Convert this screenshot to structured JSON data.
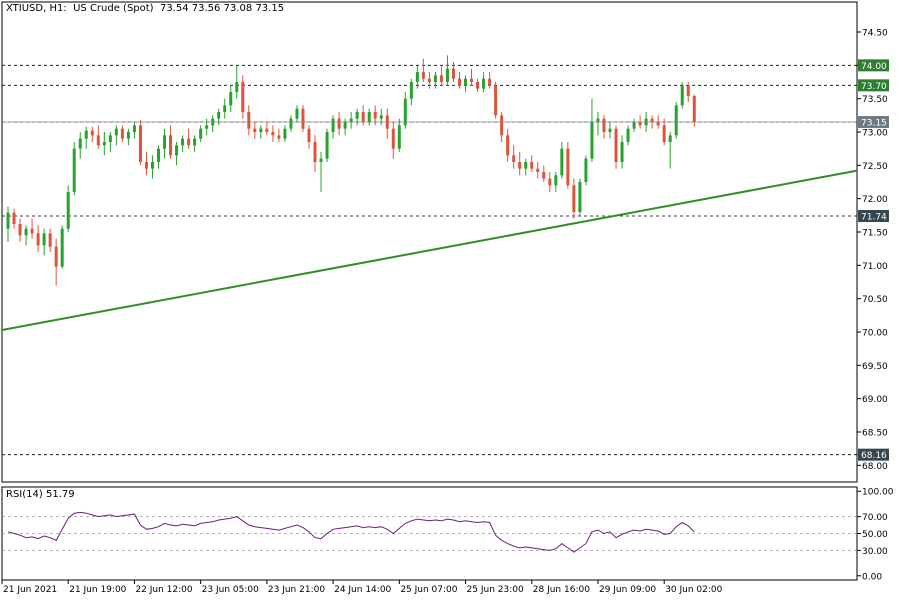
{
  "header": {
    "symbol": "XTIUSD",
    "timeframe": "H1",
    "instrument_name": "US Crude (Spot)",
    "ohlc": [
      "73.54",
      "73.56",
      "73.08",
      "73.15"
    ]
  },
  "rsi_header": {
    "name": "RSI(14)",
    "value": "51.79"
  },
  "colors": {
    "bull": "#26a22e",
    "bear": "#e0533b",
    "trendline": "#2f8f24",
    "rsi_line": "#6a1f7a",
    "grid": "#000000",
    "label_green_bg": "#2e7d32",
    "label_grey_bg": "#6d7b85",
    "label_dark_bg": "#37474f"
  },
  "chart_data": [
    {
      "type": "candlestick",
      "title": "XTIUSD, H1: US Crude (Spot)",
      "ylim": [
        67.75,
        74.95
      ],
      "y_ticks": [
        "74.50",
        "74.00",
        "73.50",
        "73.00",
        "72.50",
        "72.00",
        "71.50",
        "71.00",
        "70.50",
        "70.00",
        "69.50",
        "69.00",
        "68.50",
        "68.00"
      ],
      "x_ticks": [
        "21 Jun 2021",
        "21 Jun 19:00",
        "22 Jun 12:00",
        "23 Jun 05:00",
        "23 Jun 21:00",
        "24 Jun 14:00",
        "25 Jun 07:00",
        "25 Jun 23:00",
        "28 Jun 16:00",
        "29 Jun 09:00",
        "30 Jun 02:00"
      ],
      "horizontal_levels": [
        {
          "price": 74.0,
          "label": "74.00",
          "style": "green"
        },
        {
          "price": 73.7,
          "label": "73.70",
          "style": "green"
        },
        {
          "price": 73.15,
          "label": "73.15",
          "style": "grey"
        },
        {
          "price": 71.74,
          "label": "71.74",
          "style": "dark"
        },
        {
          "price": 68.16,
          "label": "68.16",
          "style": "dark"
        }
      ],
      "trendline": {
        "start": [
          0,
          70.03
        ],
        "end": [
          128,
          72.42
        ]
      },
      "candles_ohlc": [
        [
          71.55,
          71.88,
          71.35,
          71.79
        ],
        [
          71.79,
          71.85,
          71.55,
          71.62
        ],
        [
          71.62,
          71.7,
          71.35,
          71.45
        ],
        [
          71.45,
          71.6,
          71.3,
          71.55
        ],
        [
          71.55,
          71.7,
          71.4,
          71.48
        ],
        [
          71.48,
          71.6,
          71.2,
          71.3
        ],
        [
          71.3,
          71.55,
          71.15,
          71.48
        ],
        [
          71.48,
          71.55,
          71.2,
          71.28
        ],
        [
          71.28,
          71.4,
          70.7,
          70.98
        ],
        [
          70.98,
          71.6,
          70.95,
          71.55
        ],
        [
          71.55,
          72.2,
          71.5,
          72.1
        ],
        [
          72.1,
          72.85,
          72.05,
          72.75
        ],
        [
          72.75,
          73.0,
          72.6,
          72.9
        ],
        [
          72.9,
          73.08,
          72.75,
          73.02
        ],
        [
          73.02,
          73.08,
          72.85,
          72.95
        ],
        [
          72.95,
          73.1,
          72.75,
          72.8
        ],
        [
          72.8,
          73.0,
          72.65,
          72.85
        ],
        [
          72.85,
          73.0,
          72.7,
          72.95
        ],
        [
          72.95,
          73.1,
          72.8,
          73.05
        ],
        [
          73.05,
          73.1,
          72.85,
          72.9
        ],
        [
          72.9,
          73.05,
          72.8,
          73.0
        ],
        [
          73.0,
          73.15,
          72.9,
          73.1
        ],
        [
          73.1,
          73.18,
          72.5,
          72.55
        ],
        [
          72.55,
          72.7,
          72.35,
          72.45
        ],
        [
          72.45,
          72.65,
          72.3,
          72.55
        ],
        [
          72.55,
          72.8,
          72.45,
          72.75
        ],
        [
          72.75,
          73.05,
          72.6,
          72.95
        ],
        [
          72.95,
          73.1,
          72.6,
          72.65
        ],
        [
          72.65,
          72.85,
          72.5,
          72.8
        ],
        [
          72.8,
          72.95,
          72.7,
          72.9
        ],
        [
          72.9,
          73.05,
          72.75,
          72.8
        ],
        [
          72.8,
          72.95,
          72.7,
          72.9
        ],
        [
          72.9,
          73.1,
          72.85,
          73.05
        ],
        [
          73.05,
          73.2,
          72.95,
          73.1
        ],
        [
          73.1,
          73.25,
          73.0,
          73.2
        ],
        [
          73.2,
          73.35,
          73.1,
          73.3
        ],
        [
          73.3,
          73.5,
          73.2,
          73.4
        ],
        [
          73.4,
          73.7,
          73.3,
          73.6
        ],
        [
          73.6,
          74.0,
          73.5,
          73.75
        ],
        [
          73.75,
          73.85,
          73.2,
          73.3
        ],
        [
          73.3,
          73.4,
          72.95,
          73.05
        ],
        [
          73.05,
          73.15,
          72.9,
          73.0
        ],
        [
          73.0,
          73.1,
          72.9,
          73.05
        ],
        [
          73.05,
          73.15,
          72.95,
          73.0
        ],
        [
          73.0,
          73.1,
          72.85,
          72.95
        ],
        [
          72.95,
          73.05,
          72.85,
          72.9
        ],
        [
          72.9,
          73.1,
          72.85,
          73.05
        ],
        [
          73.05,
          73.25,
          73.0,
          73.2
        ],
        [
          73.2,
          73.4,
          73.15,
          73.35
        ],
        [
          73.35,
          73.4,
          73.0,
          73.05
        ],
        [
          73.05,
          73.1,
          72.75,
          72.85
        ],
        [
          72.85,
          72.95,
          72.4,
          72.55
        ],
        [
          72.55,
          72.7,
          72.1,
          72.6
        ],
        [
          72.6,
          73.05,
          72.55,
          73.0
        ],
        [
          73.0,
          73.25,
          72.9,
          73.2
        ],
        [
          73.2,
          73.3,
          72.95,
          73.05
        ],
        [
          73.05,
          73.2,
          72.95,
          73.15
        ],
        [
          73.15,
          73.3,
          73.05,
          73.2
        ],
        [
          73.2,
          73.35,
          73.1,
          73.3
        ],
        [
          73.3,
          73.4,
          73.1,
          73.15
        ],
        [
          73.15,
          73.35,
          73.1,
          73.3
        ],
        [
          73.3,
          73.4,
          73.1,
          73.2
        ],
        [
          73.2,
          73.35,
          73.1,
          73.25
        ],
        [
          73.25,
          73.35,
          72.9,
          73.05
        ],
        [
          73.05,
          73.15,
          72.6,
          72.75
        ],
        [
          72.75,
          73.2,
          72.7,
          73.1
        ],
        [
          73.1,
          73.6,
          73.05,
          73.5
        ],
        [
          73.5,
          73.8,
          73.4,
          73.75
        ],
        [
          73.75,
          74.0,
          73.65,
          73.9
        ],
        [
          73.9,
          74.1,
          73.75,
          73.8
        ],
        [
          73.8,
          73.9,
          73.65,
          73.75
        ],
        [
          73.75,
          73.9,
          73.65,
          73.85
        ],
        [
          73.85,
          74.0,
          73.7,
          73.75
        ],
        [
          73.75,
          74.15,
          73.7,
          73.95
        ],
        [
          73.95,
          74.05,
          73.75,
          73.8
        ],
        [
          73.8,
          73.9,
          73.65,
          73.7
        ],
        [
          73.7,
          73.85,
          73.6,
          73.8
        ],
        [
          73.8,
          73.95,
          73.7,
          73.75
        ],
        [
          73.75,
          73.8,
          73.6,
          73.65
        ],
        [
          73.65,
          73.9,
          73.6,
          73.8
        ],
        [
          73.8,
          73.9,
          73.65,
          73.7
        ],
        [
          73.7,
          73.75,
          73.2,
          73.25
        ],
        [
          73.25,
          73.3,
          72.85,
          72.95
        ],
        [
          72.95,
          73.05,
          72.55,
          72.65
        ],
        [
          72.65,
          72.8,
          72.45,
          72.55
        ],
        [
          72.55,
          72.7,
          72.35,
          72.45
        ],
        [
          72.45,
          72.6,
          72.35,
          72.55
        ],
        [
          72.55,
          72.65,
          72.4,
          72.45
        ],
        [
          72.45,
          72.55,
          72.3,
          72.4
        ],
        [
          72.4,
          72.5,
          72.25,
          72.3
        ],
        [
          72.3,
          72.4,
          72.1,
          72.2
        ],
        [
          72.2,
          72.4,
          72.1,
          72.35
        ],
        [
          72.35,
          72.85,
          72.3,
          72.75
        ],
        [
          72.75,
          72.85,
          72.15,
          72.2
        ],
        [
          72.2,
          72.3,
          71.7,
          71.8
        ],
        [
          71.8,
          72.3,
          71.75,
          72.25
        ],
        [
          72.25,
          72.65,
          72.2,
          72.6
        ],
        [
          72.6,
          73.5,
          72.55,
          73.15
        ],
        [
          73.15,
          73.3,
          72.95,
          73.2
        ],
        [
          73.2,
          73.25,
          72.9,
          73.0
        ],
        [
          73.0,
          73.15,
          72.9,
          73.05
        ],
        [
          73.05,
          73.1,
          72.45,
          72.55
        ],
        [
          72.55,
          72.95,
          72.45,
          72.85
        ],
        [
          72.85,
          73.1,
          72.8,
          73.05
        ],
        [
          73.05,
          73.2,
          73.0,
          73.15
        ],
        [
          73.15,
          73.25,
          73.05,
          73.1
        ],
        [
          73.1,
          73.3,
          73.0,
          73.2
        ],
        [
          73.2,
          73.25,
          73.05,
          73.15
        ],
        [
          73.15,
          73.25,
          73.05,
          73.1
        ],
        [
          73.1,
          73.2,
          72.8,
          72.85
        ],
        [
          72.85,
          73.0,
          72.45,
          72.95
        ],
        [
          72.95,
          73.45,
          72.9,
          73.4
        ],
        [
          73.4,
          73.75,
          73.35,
          73.7
        ],
        [
          73.7,
          73.75,
          73.45,
          73.54
        ],
        [
          73.54,
          73.56,
          73.08,
          73.15
        ]
      ]
    },
    {
      "type": "line",
      "title": "RSI(14) 51.79",
      "ylim": [
        -5,
        105
      ],
      "y_ticks": [
        "100.00",
        "70.00",
        "50.00",
        "30.00",
        "0.00"
      ],
      "levels": [
        70,
        50,
        30
      ],
      "series": [
        {
          "values": [
            52,
            50,
            48,
            45,
            46,
            44,
            47,
            45,
            42,
            55,
            68,
            74,
            75,
            74,
            72,
            70,
            71,
            72,
            70,
            71,
            72,
            73,
            60,
            55,
            56,
            58,
            62,
            60,
            59,
            61,
            60,
            59,
            62,
            63,
            64,
            66,
            67,
            68,
            70,
            65,
            60,
            58,
            57,
            56,
            55,
            54,
            56,
            58,
            60,
            57,
            52,
            45,
            44,
            50,
            55,
            56,
            57,
            58,
            59,
            57,
            58,
            57,
            58,
            55,
            50,
            56,
            62,
            65,
            67,
            66,
            65,
            66,
            65,
            67,
            66,
            64,
            65,
            64,
            63,
            64,
            63,
            48,
            42,
            38,
            35,
            33,
            34,
            33,
            32,
            31,
            30,
            32,
            38,
            33,
            28,
            33,
            38,
            52,
            54,
            50,
            52,
            45,
            49,
            52,
            54,
            53,
            55,
            54,
            53,
            49,
            50,
            58,
            63,
            59,
            51.79
          ]
        }
      ]
    }
  ]
}
